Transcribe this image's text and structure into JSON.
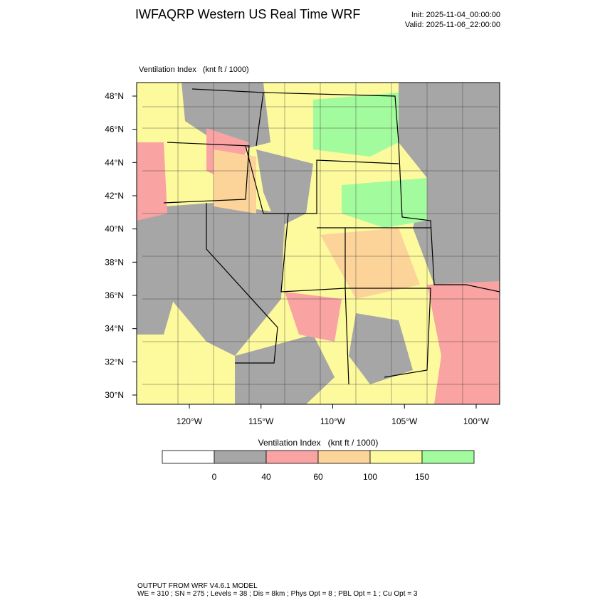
{
  "header": {
    "title": "IWFAQRP Western US Real Time WRF",
    "init": "Init: 2025-11-04_00:00:00",
    "valid": "Valid: 2025-11-06_22:00:00"
  },
  "map": {
    "label": "Ventilation Index   (knt ft / 1000)",
    "lat_ticks": [
      {
        "value": 30,
        "label": "30°N"
      },
      {
        "value": 32,
        "label": "32°N"
      },
      {
        "value": 34,
        "label": "34°N"
      },
      {
        "value": 36,
        "label": "36°N"
      },
      {
        "value": 38,
        "label": "38°N"
      },
      {
        "value": 40,
        "label": "40°N"
      },
      {
        "value": 42,
        "label": "42°N"
      },
      {
        "value": 44,
        "label": "44°N"
      },
      {
        "value": 46,
        "label": "46°N"
      },
      {
        "value": 48,
        "label": "48°N"
      }
    ],
    "lon_ticks": [
      {
        "value": -120,
        "label": "120°W"
      },
      {
        "value": -115,
        "label": "115°W"
      },
      {
        "value": -110,
        "label": "110°W"
      },
      {
        "value": -105,
        "label": "105°W"
      },
      {
        "value": -100,
        "label": "100°W"
      }
    ]
  },
  "colorbar": {
    "title": "Ventilation Index   (knt ft / 1000)",
    "levels": [
      0,
      40,
      60,
      100,
      150
    ],
    "colors": [
      "#ffffff",
      "#a6a6a6",
      "#f9a3a3",
      "#fcd49a",
      "#fdfa9e",
      "#a2fb9d"
    ]
  },
  "footer": {
    "line1": "OUTPUT FROM WRF V4.6.1 MODEL",
    "line2": "WE = 310 ; SN = 275 ; Levels = 38 ; Dis = 8km ; Phys Opt = 8 ; PBL Opt = 1 ; Cu Opt = 3"
  }
}
